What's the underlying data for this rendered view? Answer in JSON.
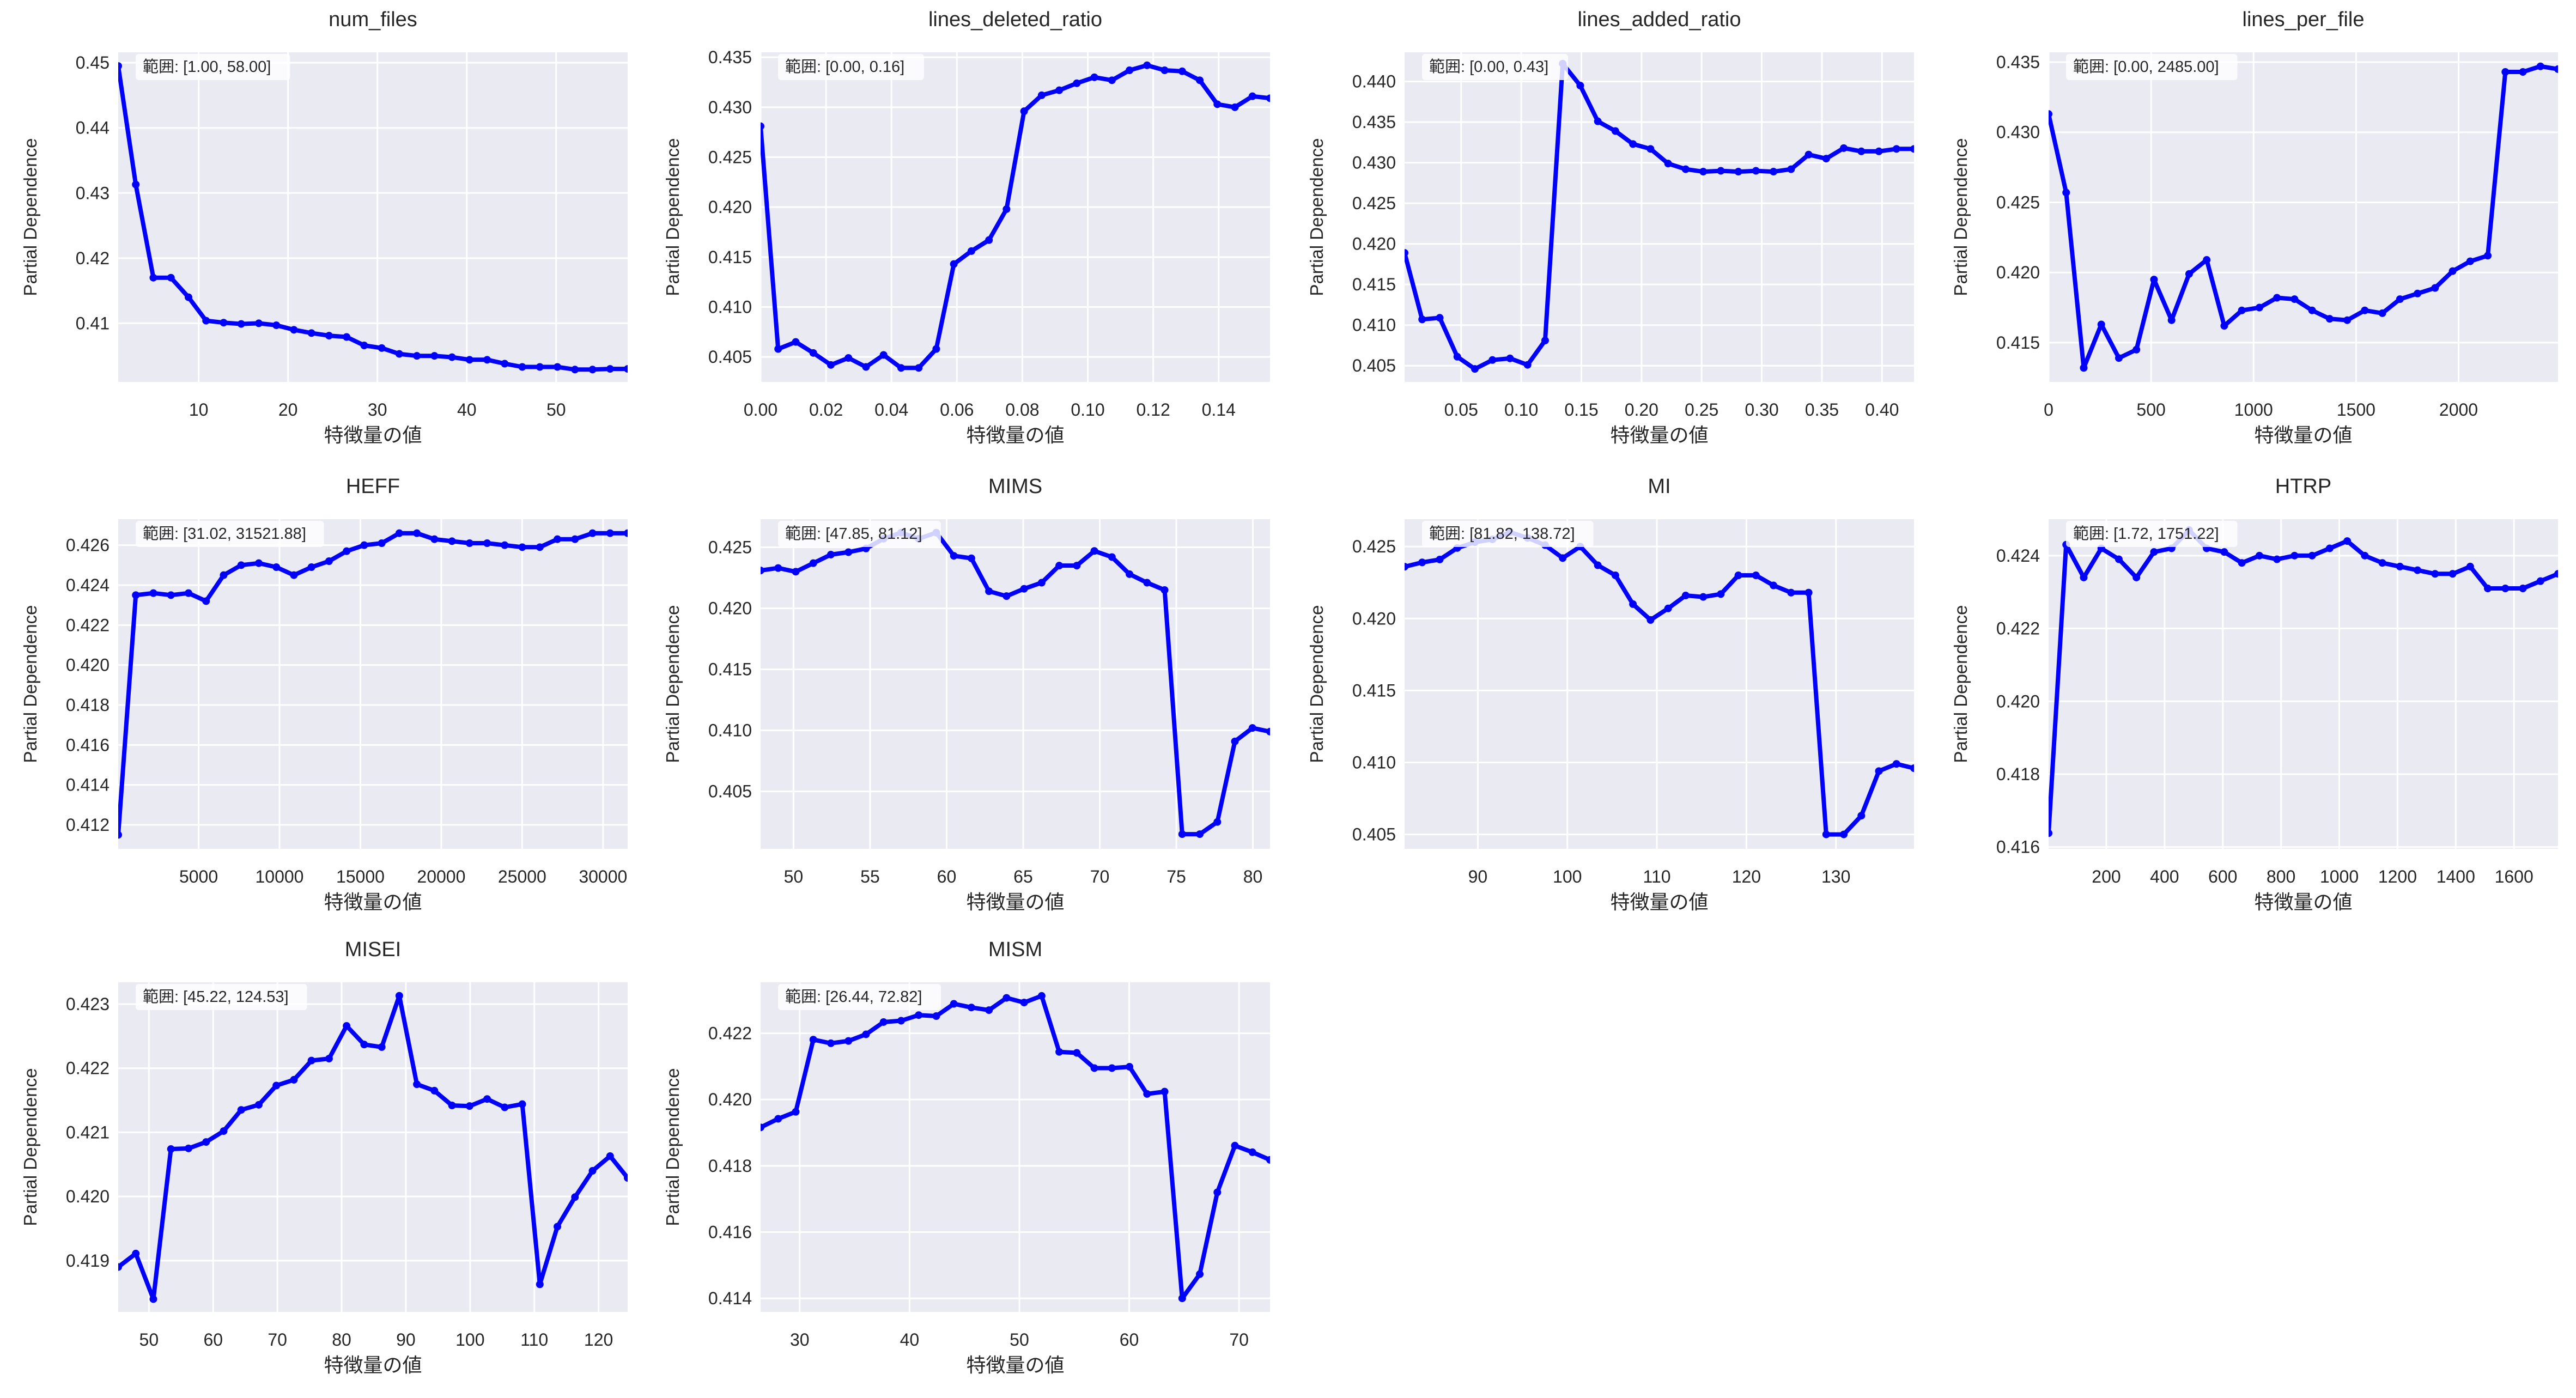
{
  "figure": {
    "background": "#ffffff",
    "axes_background": "#eaeaf2",
    "grid_color": "#ffffff",
    "line_color": "#0000ff",
    "text_color": "#262626"
  },
  "chart_data": [
    {
      "type": "line",
      "title": "num_files",
      "xlabel": "特徴量の値",
      "ylabel": "Partial Dependence",
      "range_label": "範囲: [1.00, 58.00]",
      "grid": true,
      "marker": "circle",
      "xlim": [
        1,
        58
      ],
      "ylim": [
        0.401,
        0.4516
      ],
      "xticks": [
        10,
        20,
        30,
        40,
        50
      ],
      "xtick_labels": [
        "10",
        "20",
        "30",
        "40",
        "50"
      ],
      "yticks": [
        0.41,
        0.42,
        0.43,
        0.44,
        0.45
      ],
      "ytick_labels": [
        "0.41",
        "0.42",
        "0.43",
        "0.44",
        "0.45"
      ],
      "y": [
        0.4495,
        0.4313,
        0.417,
        0.417,
        0.414,
        0.4104,
        0.4101,
        0.4099,
        0.41,
        0.4097,
        0.409,
        0.4085,
        0.4081,
        0.4079,
        0.4066,
        0.4062,
        0.4053,
        0.405,
        0.405,
        0.4048,
        0.4044,
        0.4044,
        0.4038,
        0.4033,
        0.4033,
        0.4033,
        0.4029,
        0.4029,
        0.403,
        0.403
      ]
    },
    {
      "type": "line",
      "title": "lines_deleted_ratio",
      "xlabel": "特徴量の値",
      "ylabel": "Partial Dependence",
      "range_label": "範囲: [0.00, 0.16]",
      "grid": true,
      "marker": "circle",
      "xlim": [
        0,
        0.1557
      ],
      "ylim": [
        0.4025,
        0.4355
      ],
      "xticks": [
        0,
        0.02,
        0.04,
        0.06,
        0.08,
        0.1,
        0.12,
        0.14
      ],
      "xtick_labels": [
        "0.00",
        "0.02",
        "0.04",
        "0.06",
        "0.08",
        "0.10",
        "0.12",
        "0.14"
      ],
      "yticks": [
        0.405,
        0.41,
        0.415,
        0.42,
        0.425,
        0.43,
        0.435
      ],
      "ytick_labels": [
        "0.405",
        "0.410",
        "0.415",
        "0.420",
        "0.425",
        "0.430",
        "0.435"
      ],
      "y": [
        0.4281,
        0.4058,
        0.4065,
        0.4054,
        0.4042,
        0.4049,
        0.404,
        0.4052,
        0.4039,
        0.4039,
        0.4058,
        0.4143,
        0.4156,
        0.4167,
        0.4198,
        0.4296,
        0.4312,
        0.4317,
        0.4324,
        0.433,
        0.4327,
        0.4337,
        0.4342,
        0.4337,
        0.4336,
        0.4327,
        0.4303,
        0.43,
        0.4311,
        0.4309
      ]
    },
    {
      "type": "line",
      "title": "lines_added_ratio",
      "xlabel": "特徴量の値",
      "ylabel": "Partial Dependence",
      "range_label": "範囲: [0.00, 0.43]",
      "grid": true,
      "marker": "circle",
      "xlim": [
        0.003,
        0.4266
      ],
      "ylim": [
        0.403,
        0.4436
      ],
      "xticks": [
        0.05,
        0.1,
        0.15,
        0.2,
        0.25,
        0.3,
        0.35,
        0.4
      ],
      "xtick_labels": [
        "0.05",
        "0.10",
        "0.15",
        "0.20",
        "0.25",
        "0.30",
        "0.35",
        "0.40"
      ],
      "yticks": [
        0.405,
        0.41,
        0.415,
        0.42,
        0.425,
        0.43,
        0.435,
        0.44
      ],
      "ytick_labels": [
        "0.405",
        "0.410",
        "0.415",
        "0.420",
        "0.425",
        "0.430",
        "0.435",
        "0.440"
      ],
      "y": [
        0.4189,
        0.4107,
        0.4109,
        0.4061,
        0.4046,
        0.4057,
        0.4059,
        0.4051,
        0.4081,
        0.4422,
        0.4395,
        0.4351,
        0.4339,
        0.4323,
        0.4317,
        0.4299,
        0.4292,
        0.4289,
        0.429,
        0.4289,
        0.429,
        0.4289,
        0.4292,
        0.431,
        0.4305,
        0.4318,
        0.4314,
        0.4314,
        0.4317,
        0.4317
      ]
    },
    {
      "type": "line",
      "title": "lines_per_file",
      "xlabel": "特徴量の値",
      "ylabel": "Partial Dependence",
      "range_label": "範囲: [0.00, 2485.00]",
      "grid": true,
      "marker": "circle",
      "xlim": [
        0,
        2485
      ],
      "ylim": [
        0.4122,
        0.4357
      ],
      "xticks": [
        0,
        500,
        1000,
        1500,
        2000
      ],
      "xtick_labels": [
        "0",
        "500",
        "1000",
        "1500",
        "2000"
      ],
      "yticks": [
        0.415,
        0.42,
        0.425,
        0.43,
        0.435
      ],
      "ytick_labels": [
        "0.415",
        "0.420",
        "0.425",
        "0.430",
        "0.435"
      ],
      "y": [
        0.4313,
        0.4257,
        0.4132,
        0.4163,
        0.4139,
        0.4145,
        0.4195,
        0.4166,
        0.4199,
        0.4209,
        0.4162,
        0.4173,
        0.4175,
        0.4182,
        0.4181,
        0.4173,
        0.4167,
        0.4166,
        0.4173,
        0.4171,
        0.4181,
        0.4185,
        0.4189,
        0.4201,
        0.4208,
        0.4212,
        0.4343,
        0.4343,
        0.4347,
        0.4345
      ]
    },
    {
      "type": "line",
      "title": "HEFF",
      "xlabel": "特徴量の値",
      "ylabel": "Partial Dependence",
      "range_label": "範囲: [31.02, 31521.88]",
      "grid": true,
      "marker": "circle",
      "xlim": [
        31.02,
        31521.88
      ],
      "ylim": [
        0.4108,
        0.4273
      ],
      "xticks": [
        5000,
        10000,
        15000,
        20000,
        25000,
        30000
      ],
      "xtick_labels": [
        "5000",
        "10000",
        "15000",
        "20000",
        "25000",
        "30000"
      ],
      "yticks": [
        0.412,
        0.414,
        0.416,
        0.418,
        0.42,
        0.422,
        0.424,
        0.426
      ],
      "ytick_labels": [
        "0.412",
        "0.414",
        "0.416",
        "0.418",
        "0.420",
        "0.422",
        "0.424",
        "0.426"
      ],
      "y": [
        0.4115,
        0.4235,
        0.4236,
        0.4235,
        0.4236,
        0.4232,
        0.4245,
        0.425,
        0.4251,
        0.4249,
        0.4245,
        0.4249,
        0.4252,
        0.4257,
        0.426,
        0.4261,
        0.4266,
        0.4266,
        0.4263,
        0.4262,
        0.4261,
        0.4261,
        0.426,
        0.4259,
        0.4259,
        0.4263,
        0.4263,
        0.4266,
        0.4266,
        0.4266
      ]
    },
    {
      "type": "line",
      "title": "MIMS",
      "xlabel": "特徴量の値",
      "ylabel": "Partial Dependence",
      "range_label": "範囲: [47.85, 81.12]",
      "grid": true,
      "marker": "circle",
      "xlim": [
        47.85,
        81.12
      ],
      "ylim": [
        0.4003,
        0.4273
      ],
      "xticks": [
        50,
        55,
        60,
        65,
        70,
        75,
        80
      ],
      "xtick_labels": [
        "50",
        "55",
        "60",
        "65",
        "70",
        "75",
        "80"
      ],
      "yticks": [
        0.405,
        0.41,
        0.415,
        0.42,
        0.425
      ],
      "ytick_labels": [
        "0.405",
        "0.410",
        "0.415",
        "0.420",
        "0.425"
      ],
      "y": [
        0.4231,
        0.4233,
        0.423,
        0.4237,
        0.4244,
        0.4246,
        0.4249,
        0.4257,
        0.4262,
        0.4257,
        0.4262,
        0.4243,
        0.4241,
        0.4214,
        0.421,
        0.4216,
        0.4221,
        0.4235,
        0.4235,
        0.4247,
        0.4242,
        0.4228,
        0.4221,
        0.4215,
        0.4015,
        0.4015,
        0.4025,
        0.4091,
        0.4102,
        0.4099
      ]
    },
    {
      "type": "line",
      "title": "MI",
      "xlabel": "特徴量の値",
      "ylabel": "Partial Dependence",
      "range_label": "範囲: [81.82, 138.72]",
      "grid": true,
      "marker": "circle",
      "xlim": [
        81.82,
        138.72
      ],
      "ylim": [
        0.404,
        0.4269
      ],
      "xticks": [
        90,
        100,
        110,
        120,
        130
      ],
      "xtick_labels": [
        "90",
        "100",
        "110",
        "120",
        "130"
      ],
      "yticks": [
        0.405,
        0.41,
        0.415,
        0.42,
        0.425
      ],
      "ytick_labels": [
        "0.405",
        "0.410",
        "0.415",
        "0.420",
        "0.425"
      ],
      "y": [
        0.4236,
        0.4239,
        0.4241,
        0.4249,
        0.4253,
        0.4255,
        0.426,
        0.4256,
        0.4251,
        0.4242,
        0.425,
        0.4237,
        0.423,
        0.421,
        0.4199,
        0.4207,
        0.4216,
        0.4215,
        0.4217,
        0.423,
        0.423,
        0.4223,
        0.4218,
        0.4218,
        0.405,
        0.405,
        0.4063,
        0.4094,
        0.4099,
        0.4096
      ]
    },
    {
      "type": "line",
      "title": "HTRP",
      "xlabel": "特徴量の値",
      "ylabel": "Partial Dependence",
      "range_label": "範囲: [1.72, 1751.22]",
      "grid": true,
      "marker": "circle",
      "xlim": [
        1.72,
        1751.22
      ],
      "ylim": [
        0.41595,
        0.425
      ],
      "xticks": [
        200,
        400,
        600,
        800,
        1000,
        1200,
        1400,
        1600
      ],
      "xtick_labels": [
        "200",
        "400",
        "600",
        "800",
        "1000",
        "1200",
        "1400",
        "1600"
      ],
      "yticks": [
        0.416,
        0.418,
        0.42,
        0.422,
        0.424
      ],
      "ytick_labels": [
        "0.416",
        "0.418",
        "0.420",
        "0.422",
        "0.424"
      ],
      "y": [
        0.41638,
        0.4243,
        0.4234,
        0.4242,
        0.4239,
        0.4234,
        0.4241,
        0.4242,
        0.4247,
        0.4242,
        0.4241,
        0.4238,
        0.424,
        0.4239,
        0.424,
        0.424,
        0.4242,
        0.4244,
        0.424,
        0.4238,
        0.4237,
        0.4236,
        0.4235,
        0.4235,
        0.4237,
        0.4231,
        0.4231,
        0.4231,
        0.4233,
        0.4235
      ]
    },
    {
      "type": "line",
      "title": "MISEI",
      "xlabel": "特徴量の値",
      "ylabel": "Partial Dependence",
      "range_label": "範囲: [45.22, 124.53]",
      "grid": true,
      "marker": "circle",
      "xlim": [
        45.22,
        124.53
      ],
      "ylim": [
        0.4182,
        0.42334
      ],
      "xticks": [
        50,
        60,
        70,
        80,
        90,
        100,
        110,
        120
      ],
      "xtick_labels": [
        "50",
        "60",
        "70",
        "80",
        "90",
        "100",
        "110",
        "120"
      ],
      "yticks": [
        0.419,
        0.42,
        0.421,
        0.422,
        0.423
      ],
      "ytick_labels": [
        "0.419",
        "0.420",
        "0.421",
        "0.422",
        "0.423"
      ],
      "y": [
        0.4189,
        0.41911,
        0.4184,
        0.42074,
        0.42075,
        0.42085,
        0.42102,
        0.42135,
        0.42143,
        0.42173,
        0.42182,
        0.42212,
        0.42215,
        0.42266,
        0.42237,
        0.42233,
        0.42313,
        0.42175,
        0.42165,
        0.42142,
        0.42141,
        0.42152,
        0.42139,
        0.42144,
        0.41863,
        0.41953,
        0.41999,
        0.4204,
        0.42063,
        0.42029
      ]
    },
    {
      "type": "line",
      "title": "MISM",
      "xlabel": "特徴量の値",
      "ylabel": "Partial Dependence",
      "range_label": "範囲: [26.44, 72.82]",
      "grid": true,
      "marker": "circle",
      "xlim": [
        26.44,
        72.82
      ],
      "ylim": [
        0.41359,
        0.42354
      ],
      "xticks": [
        30,
        40,
        50,
        60,
        70
      ],
      "xtick_labels": [
        "30",
        "40",
        "50",
        "60",
        "70"
      ],
      "yticks": [
        0.414,
        0.416,
        0.418,
        0.42,
        0.422
      ],
      "ytick_labels": [
        "0.414",
        "0.416",
        "0.418",
        "0.420",
        "0.422"
      ],
      "y": [
        0.41916,
        0.41942,
        0.41963,
        0.42181,
        0.4217,
        0.42177,
        0.42197,
        0.42234,
        0.42238,
        0.42255,
        0.42252,
        0.42289,
        0.42278,
        0.4227,
        0.42307,
        0.42293,
        0.42313,
        0.42144,
        0.42141,
        0.42095,
        0.42095,
        0.42099,
        0.42017,
        0.42024,
        0.414,
        0.41473,
        0.4172,
        0.41861,
        0.41841,
        0.41818
      ]
    }
  ]
}
